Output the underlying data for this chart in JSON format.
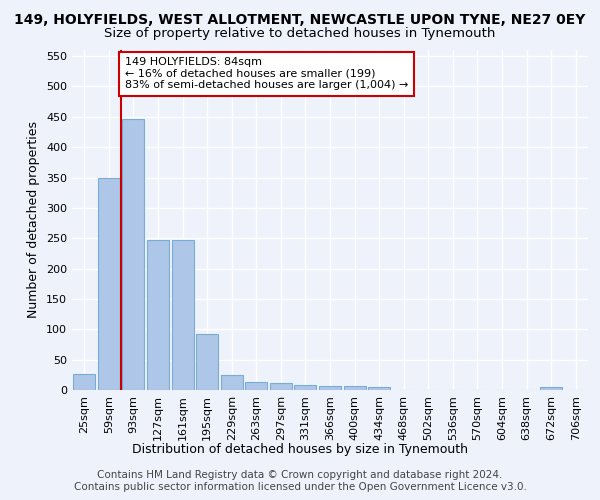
{
  "title": "149, HOLYFIELDS, WEST ALLOTMENT, NEWCASTLE UPON TYNE, NE27 0EY",
  "subtitle": "Size of property relative to detached houses in Tynemouth",
  "xlabel": "Distribution of detached houses by size in Tynemouth",
  "ylabel": "Number of detached properties",
  "categories": [
    "25sqm",
    "59sqm",
    "93sqm",
    "127sqm",
    "161sqm",
    "195sqm",
    "229sqm",
    "263sqm",
    "297sqm",
    "331sqm",
    "366sqm",
    "400sqm",
    "434sqm",
    "468sqm",
    "502sqm",
    "536sqm",
    "570sqm",
    "604sqm",
    "638sqm",
    "672sqm",
    "706sqm"
  ],
  "values": [
    27,
    350,
    447,
    247,
    247,
    92,
    25,
    14,
    12,
    8,
    6,
    6,
    5,
    0,
    0,
    0,
    0,
    0,
    0,
    5,
    0
  ],
  "bar_color": "#aec6e8",
  "bar_edge_color": "#7aadd4",
  "property_line_bin": 2,
  "property_line_color": "#cc0000",
  "annotation_text": "149 HOLYFIELDS: 84sqm\n← 16% of detached houses are smaller (199)\n83% of semi-detached houses are larger (1,004) →",
  "annotation_box_color": "#ffffff",
  "annotation_box_edge": "#cc0000",
  "ylim": [
    0,
    560
  ],
  "yticks": [
    0,
    50,
    100,
    150,
    200,
    250,
    300,
    350,
    400,
    450,
    500,
    550
  ],
  "footer1": "Contains HM Land Registry data © Crown copyright and database right 2024.",
  "footer2": "Contains public sector information licensed under the Open Government Licence v3.0.",
  "bg_color": "#eef3fb",
  "plot_bg_color": "#eef3fb",
  "grid_color": "#ffffff",
  "title_fontsize": 10,
  "subtitle_fontsize": 9.5,
  "axis_label_fontsize": 9,
  "tick_fontsize": 8,
  "footer_fontsize": 7.5
}
